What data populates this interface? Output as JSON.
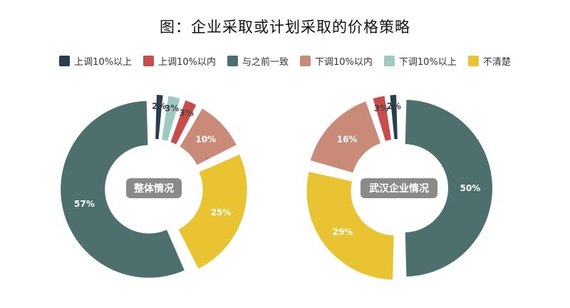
{
  "chart_data": {
    "type": "pie",
    "title": "图：企业采取或计划采取的价格策略",
    "categories": [
      "上调10%以上",
      "上调10%以内",
      "与之前一致",
      "下调10%以内",
      "下调10%以上",
      "不清楚"
    ],
    "colors": [
      "#263e50",
      "#c84c4a",
      "#4d706e",
      "#c98b78",
      "#9ccac3",
      "#e9c331"
    ],
    "legend_position": "top",
    "charts": [
      {
        "name": "整体情况",
        "slices": [
          {
            "category": "上调10%以上",
            "value": 2,
            "label": "2%"
          },
          {
            "category": "下调10%以上",
            "value": 3,
            "label": "3%"
          },
          {
            "category": "上调10%以内",
            "value": 3,
            "label": "3%"
          },
          {
            "category": "下调10%以内",
            "value": 10,
            "label": "10%"
          },
          {
            "category": "不清楚",
            "value": 25,
            "label": "25%"
          },
          {
            "category": "与之前一致",
            "value": 57,
            "label": "57%"
          }
        ]
      },
      {
        "name": "武汉企业情况",
        "slices": [
          {
            "category": "与之前一致",
            "value": 50,
            "label": "50%"
          },
          {
            "category": "不清楚",
            "value": 29,
            "label": "29%"
          },
          {
            "category": "下调10%以内",
            "value": 16,
            "label": "16%"
          },
          {
            "category": "上调10%以内",
            "value": 3,
            "label": "3%"
          },
          {
            "category": "上调10%以上",
            "value": 2,
            "label": "2%"
          }
        ]
      }
    ]
  }
}
